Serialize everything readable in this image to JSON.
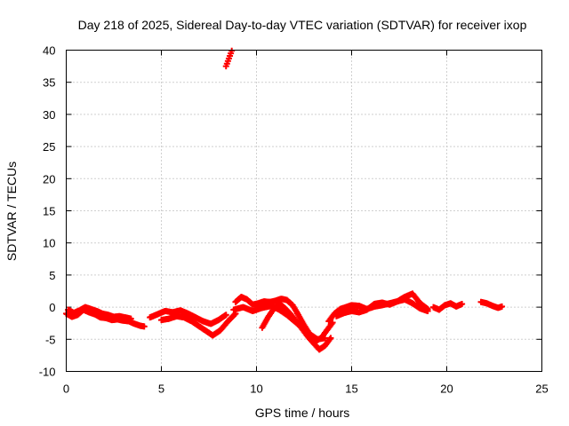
{
  "chart_data": {
    "type": "scatter",
    "title": "Day 218 of 2025, Sidereal Day-to-day VTEC variation (SDTVAR) for receiver ixop",
    "xlabel": "GPS time / hours",
    "ylabel": "SDTVAR / TECUs",
    "xlim": [
      0,
      25
    ],
    "ylim": [
      -10,
      40
    ],
    "xticks": [
      0,
      5,
      10,
      15,
      20,
      25
    ],
    "yticks": [
      -10,
      -5,
      0,
      5,
      10,
      15,
      20,
      25,
      30,
      35,
      40
    ],
    "xtick_labels": [
      "0",
      "5",
      "10",
      "15",
      "20",
      "25"
    ],
    "ytick_labels": [
      "-10",
      "-5",
      "0",
      "5",
      "10",
      "15",
      "20",
      "25",
      "30",
      "35",
      "40"
    ],
    "grid": true,
    "marker_color": "#ff0000",
    "series": [
      {
        "name": "trace-a",
        "x": [
          0.0,
          0.3,
          0.6,
          0.9,
          1.2,
          1.5,
          1.8,
          2.1,
          2.4,
          2.7,
          3.0,
          3.3,
          3.6,
          3.9,
          4.1
        ],
        "y": [
          -1.0,
          -1.5,
          -1.2,
          -0.4,
          -0.8,
          -1.1,
          -1.6,
          -1.7,
          -2.0,
          -1.9,
          -2.1,
          -2.2,
          -2.6,
          -2.9,
          -3.0
        ]
      },
      {
        "name": "trace-b",
        "x": [
          0.1,
          0.4,
          0.7,
          1.0,
          1.3,
          1.6,
          1.9,
          2.2,
          2.5,
          2.8,
          3.1,
          3.4
        ],
        "y": [
          -0.4,
          -0.9,
          -0.5,
          0.0,
          -0.3,
          -0.6,
          -1.0,
          -1.2,
          -1.5,
          -1.4,
          -1.6,
          -1.8
        ]
      },
      {
        "name": "trace-c",
        "x": [
          4.4,
          4.8,
          5.2,
          5.6,
          6.0,
          6.4,
          6.8,
          7.2,
          7.6,
          8.0,
          8.4
        ],
        "y": [
          -1.6,
          -1.1,
          -0.6,
          -0.8,
          -0.5,
          -1.0,
          -1.6,
          -2.2,
          -2.6,
          -2.0,
          -1.2
        ]
      },
      {
        "name": "trace-d",
        "x": [
          5.0,
          5.4,
          5.8,
          6.2,
          6.6,
          7.0,
          7.4,
          7.7,
          8.1,
          8.5,
          8.9
        ],
        "y": [
          -2.0,
          -1.8,
          -1.4,
          -1.6,
          -2.2,
          -3.0,
          -3.8,
          -4.4,
          -3.6,
          -2.2,
          -1.0
        ]
      },
      {
        "name": "trace-e",
        "x": [
          8.9,
          9.2,
          9.5,
          9.8,
          10.1,
          10.4,
          10.7,
          11.0,
          11.3,
          11.6,
          11.9,
          12.2,
          12.5,
          12.8,
          13.1,
          13.4,
          13.7,
          14.0
        ],
        "y": [
          0.8,
          1.6,
          1.2,
          0.4,
          0.6,
          0.9,
          0.8,
          1.0,
          1.3,
          1.1,
          0.3,
          -1.2,
          -2.8,
          -4.2,
          -5.3,
          -4.8,
          -3.6,
          -2.4
        ]
      },
      {
        "name": "trace-f",
        "x": [
          8.8,
          9.3,
          9.8,
          10.3,
          10.8,
          11.2,
          11.6,
          12.0,
          12.4,
          12.8,
          13.2,
          13.6
        ],
        "y": [
          -0.4,
          0.0,
          -0.6,
          -0.1,
          0.2,
          -0.4,
          -1.2,
          -2.2,
          -3.2,
          -4.2,
          -5.0,
          -4.8
        ]
      },
      {
        "name": "trace-g",
        "x": [
          10.3,
          10.6,
          10.9,
          11.2,
          11.5,
          11.8,
          12.1,
          12.4,
          12.7,
          13.0,
          13.3,
          13.6,
          13.9
        ],
        "y": [
          -3.2,
          -1.6,
          -0.3,
          0.6,
          -0.2,
          -1.1,
          -2.2,
          -3.4,
          -4.6,
          -5.6,
          -6.6,
          -6.0,
          -4.8
        ]
      },
      {
        "name": "trace-h",
        "x": [
          13.8,
          14.1,
          14.4,
          14.7,
          15.0,
          15.4,
          15.8,
          16.2,
          16.6,
          17.0,
          17.4,
          17.8,
          18.2,
          18.6,
          19.0
        ],
        "y": [
          -2.2,
          -1.0,
          -0.3,
          0.0,
          0.3,
          0.2,
          -0.3,
          0.1,
          0.3,
          0.6,
          0.9,
          1.2,
          0.6,
          -0.2,
          -0.6
        ]
      },
      {
        "name": "trace-i",
        "x": [
          14.2,
          14.6,
          15.0,
          15.4,
          15.8,
          16.2,
          16.6,
          17.0,
          17.4,
          17.8,
          18.2,
          18.6,
          19.0
        ],
        "y": [
          -1.4,
          -0.9,
          -0.6,
          -0.8,
          -0.4,
          0.5,
          0.7,
          0.4,
          0.9,
          1.6,
          2.1,
          0.6,
          -0.3
        ]
      },
      {
        "name": "trace-j",
        "x": [
          19.3,
          19.6,
          19.9,
          20.2,
          20.5,
          20.8
        ],
        "y": [
          0.0,
          -0.4,
          0.3,
          0.6,
          0.1,
          0.5
        ]
      },
      {
        "name": "trace-k",
        "x": [
          21.8,
          22.1,
          22.4,
          22.7,
          22.9
        ],
        "y": [
          0.8,
          0.6,
          0.2,
          -0.1,
          0.1
        ]
      },
      {
        "name": "trace-l",
        "x": [
          8.4,
          8.5,
          8.6,
          8.7
        ],
        "y": [
          37.5,
          38.3,
          39.1,
          39.9
        ]
      }
    ]
  }
}
